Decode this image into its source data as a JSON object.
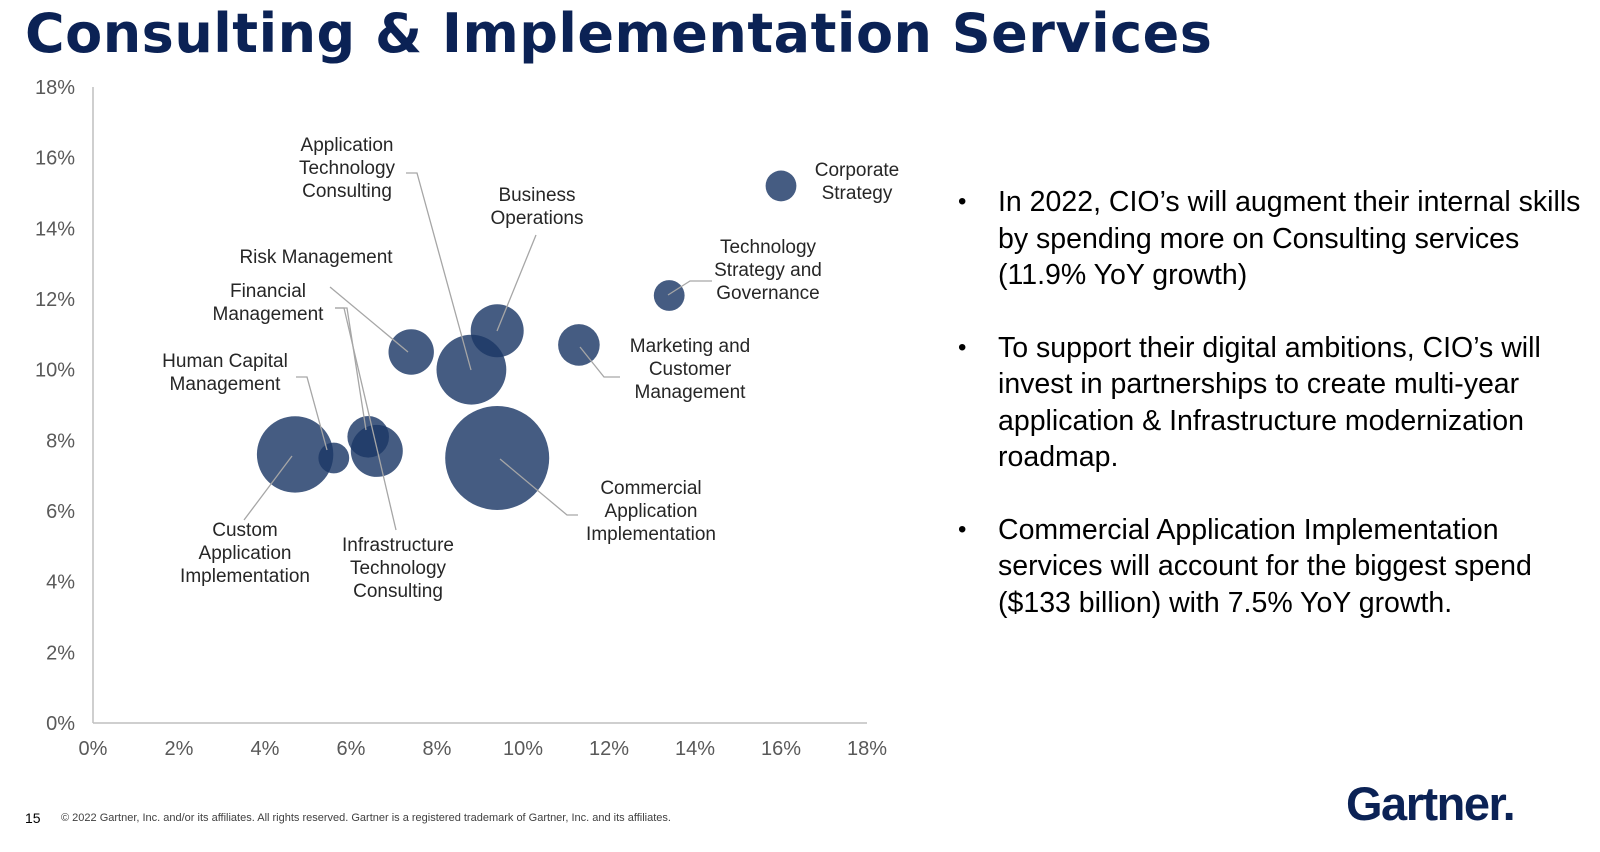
{
  "title": "Consulting & Implementation Services",
  "chart_data": {
    "type": "scatter",
    "xlim": [
      0,
      18
    ],
    "ylim": [
      0,
      18
    ],
    "x_ticks": [
      "0%",
      "2%",
      "4%",
      "6%",
      "8%",
      "10%",
      "12%",
      "14%",
      "16%",
      "18%"
    ],
    "y_ticks": [
      "0%",
      "2%",
      "4%",
      "6%",
      "8%",
      "10%",
      "12%",
      "14%",
      "16%",
      "18%"
    ],
    "grid": false,
    "bubble_color": "#1c3867",
    "points": [
      {
        "label": "Corporate Strategy",
        "x": 16.0,
        "y": 15.2,
        "size": 1.0
      },
      {
        "label": "Technology Strategy and Governance",
        "x": 13.4,
        "y": 12.1,
        "size": 1.0
      },
      {
        "label": "Marketing and Customer Management",
        "x": 11.3,
        "y": 10.7,
        "size": 1.6
      },
      {
        "label": "Business Operations",
        "x": 9.4,
        "y": 11.1,
        "size": 2.6
      },
      {
        "label": "Application Technology Consulting",
        "x": 8.8,
        "y": 10.0,
        "size": 4.5
      },
      {
        "label": "Risk Management",
        "x": 7.4,
        "y": 10.5,
        "size": 1.9
      },
      {
        "label": "Financial Management",
        "x": 6.6,
        "y": 7.7,
        "size": 2.5
      },
      {
        "label": "Infrastructure Technology Consulting",
        "x": 6.4,
        "y": 8.1,
        "size": 1.6
      },
      {
        "label": "Human Capital Management",
        "x": 5.6,
        "y": 7.5,
        "size": 1.0
      },
      {
        "label": "Custom Application Implementation",
        "x": 4.7,
        "y": 7.6,
        "size": 5.4
      },
      {
        "label": "Commercial Application Implementation",
        "x": 9.4,
        "y": 7.5,
        "size": 10.0
      }
    ]
  },
  "bullets": [
    "In 2022, CIO’s will augment their internal skills by spending more on Consulting services (11.9% YoY growth)",
    "To support their digital ambitions, CIO’s will invest in partnerships to create multi-year application & Infrastructure modernization roadmap.",
    "Commercial Application Implementation services will account for the biggest spend ($133 billion) with 7.5% YoY growth."
  ],
  "bullet_char": "•",
  "page_number": "15",
  "footer": "© 2022 Gartner, Inc. and/or its affiliates. All rights reserved. Gartner is a registered trademark of Gartner, Inc. and its affiliates.",
  "logo": "Gartner."
}
